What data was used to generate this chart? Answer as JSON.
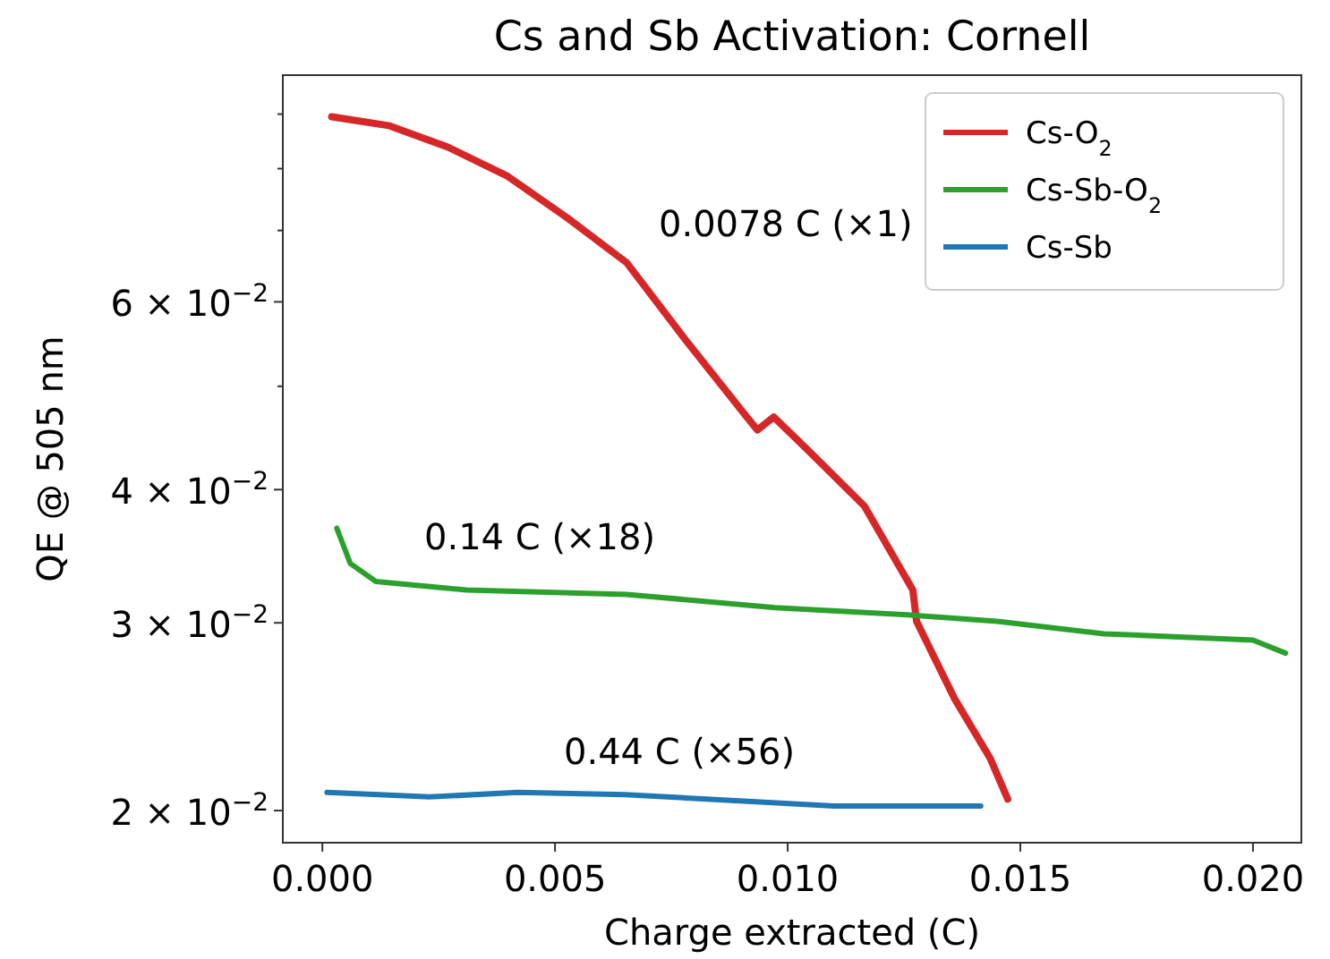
{
  "chart_data": {
    "type": "line",
    "title": "Cs and Sb Activation: Cornell",
    "xlabel": "Charge extracted (C)",
    "ylabel": "QE @ 505 nm",
    "log": "y",
    "legend": "top right",
    "grid": false,
    "marker": "none",
    "line_style": "solid",
    "xlim": [
      -0.00085,
      0.02104
    ],
    "ylim": [
      0.01866,
      0.0979
    ],
    "xticks": [
      {
        "value": 0,
        "label": "0.000"
      },
      {
        "value": 0.005,
        "label": "0.005"
      },
      {
        "value": 0.01,
        "label": "0.010"
      },
      {
        "value": 0.015,
        "label": "0.015"
      },
      {
        "value": 0.02,
        "label": "0.020"
      }
    ],
    "yticks": [
      {
        "value": 0.02,
        "label": "2 × 10$^{−2}$"
      },
      {
        "value": 0.03,
        "label": "3 × 10$^{−2}$"
      },
      {
        "value": 0.04,
        "label": "4 × 10$^{−2}$"
      },
      {
        "value": 0.05,
        "label": null
      },
      {
        "value": 0.06,
        "label": "6 × 10$^{−2}$"
      },
      {
        "value": 0.07,
        "label": null
      },
      {
        "value": 0.08,
        "label": null
      },
      {
        "value": 0.09,
        "label": null
      }
    ],
    "series": [
      {
        "name": "Cs-O$_{2}$",
        "color": "#d62728",
        "x": [
          0.0002,
          0.00142,
          0.0027,
          0.00396,
          0.00527,
          0.00654,
          0.0078,
          0.00912,
          0.00935,
          0.0097,
          0.01038,
          0.01165,
          0.01269,
          0.01277,
          0.01358,
          0.01435,
          0.01473
        ],
        "values": [
          0.0895,
          0.0878,
          0.0838,
          0.0788,
          0.0719,
          0.0653,
          0.0553,
          0.0468,
          0.0455,
          0.0468,
          0.0438,
          0.0386,
          0.0322,
          0.0301,
          0.0255,
          0.0224,
          0.0205
        ]
      },
      {
        "name": "Cs-Sb-O$_{2}$",
        "color": "#2ca02c",
        "x": [
          0.00031,
          0.0006,
          0.00115,
          0.0031,
          0.00654,
          0.00973,
          0.01269,
          0.0145,
          0.0168,
          0.02,
          0.0207
        ],
        "values": [
          0.0368,
          0.0341,
          0.0328,
          0.0322,
          0.0319,
          0.031,
          0.0305,
          0.0301,
          0.0293,
          0.0289,
          0.0281
        ]
      },
      {
        "name": "Cs-Sb",
        "color": "#1f77b4",
        "x": [
          0.0001,
          0.0023,
          0.0042,
          0.0065,
          0.011,
          0.01415
        ],
        "values": [
          0.0208,
          0.0206,
          0.0208,
          0.0207,
          0.0202,
          0.0202
        ]
      }
    ],
    "annotations": [
      "0.0078 C (×1)",
      "0.14 C (×18)",
      "0.44 C (×56)"
    ]
  }
}
